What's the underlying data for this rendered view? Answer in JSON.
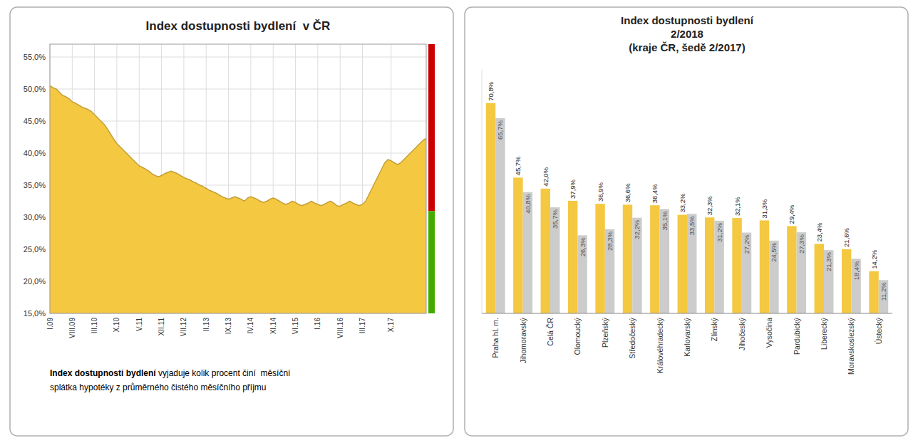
{
  "chart_data": [
    {
      "type": "area",
      "title": "Index dostupnosti bydlení  v ČR",
      "categories": [
        "I.09",
        null,
        null,
        null,
        null,
        null,
        null,
        "VIII.09",
        null,
        null,
        null,
        null,
        null,
        null,
        "III.10",
        null,
        null,
        null,
        null,
        null,
        null,
        "X.10",
        null,
        null,
        null,
        null,
        null,
        null,
        "V.11",
        null,
        null,
        null,
        null,
        null,
        null,
        "XII.11",
        null,
        null,
        null,
        null,
        null,
        null,
        "VII.12",
        null,
        null,
        null,
        null,
        null,
        null,
        "II.13",
        null,
        null,
        null,
        null,
        null,
        null,
        "IX.13",
        null,
        null,
        null,
        null,
        null,
        null,
        "IV.14",
        null,
        null,
        null,
        null,
        null,
        null,
        "XI.14",
        null,
        null,
        null,
        null,
        null,
        null,
        "VI.15",
        null,
        null,
        null,
        null,
        null,
        null,
        "I.16",
        null,
        null,
        null,
        null,
        null,
        null,
        "VIII.16",
        null,
        null,
        null,
        null,
        null,
        null,
        "III.17",
        null,
        null,
        null,
        null,
        null,
        null,
        null,
        null,
        "X.17",
        null,
        null,
        null,
        null,
        null,
        null,
        null,
        null,
        null,
        null,
        null
      ],
      "values": [
        50.5,
        50.2,
        50.0,
        49.5,
        49.0,
        48.8,
        48.5,
        48.0,
        47.8,
        47.5,
        47.2,
        47.0,
        46.8,
        46.5,
        46.0,
        45.5,
        45.0,
        44.5,
        43.8,
        43.0,
        42.2,
        41.5,
        41.0,
        40.5,
        40.0,
        39.5,
        39.0,
        38.5,
        38.0,
        37.8,
        37.5,
        37.2,
        36.8,
        36.5,
        36.3,
        36.5,
        36.8,
        37.0,
        37.2,
        37.0,
        36.8,
        36.5,
        36.2,
        36.0,
        35.8,
        35.5,
        35.3,
        35.0,
        34.8,
        34.5,
        34.2,
        34.0,
        33.8,
        33.5,
        33.2,
        33.0,
        32.8,
        33.0,
        33.2,
        33.0,
        32.8,
        32.5,
        33.0,
        33.2,
        33.0,
        32.8,
        32.5,
        32.3,
        32.5,
        32.8,
        33.0,
        32.8,
        32.5,
        32.2,
        32.0,
        32.2,
        32.5,
        32.3,
        32.0,
        31.8,
        32.0,
        32.2,
        32.5,
        32.2,
        32.0,
        31.8,
        32.0,
        32.3,
        32.5,
        32.2,
        31.8,
        31.7,
        32.0,
        32.2,
        32.5,
        32.2,
        32.0,
        31.8,
        32.0,
        32.5,
        33.5,
        34.5,
        35.5,
        36.5,
        37.5,
        38.5,
        39.0,
        38.8,
        38.5,
        38.2,
        38.5,
        39.0,
        39.5,
        40.0,
        40.5,
        41.0,
        41.5,
        42.0,
        42.3
      ],
      "color": "#F5C842",
      "ylim": [
        15,
        57
      ],
      "yticks": [
        {
          "value": 15,
          "label": "15,0%"
        },
        {
          "value": 20,
          "label": "20,0%"
        },
        {
          "value": 25,
          "label": "25,0%"
        },
        {
          "value": 30,
          "label": "30,0%"
        },
        {
          "value": 35,
          "label": "35,0%"
        },
        {
          "value": 40,
          "label": "40,0%"
        },
        {
          "value": 45,
          "label": "45,0%"
        },
        {
          "value": 50,
          "label": "50,0%"
        },
        {
          "value": 55,
          "label": "55,0%"
        }
      ],
      "grid": true,
      "annotations": [
        "Index dostupnosti bydlení",
        " vyjaduje kolik procent činí  měsíční",
        "splátka hypotéky z průměrného čistého měsíčního příjmu"
      ]
    },
    {
      "type": "bar",
      "title": "Index dostupnosti bydlení\n2/2018\n(kraje ČR, šedě 2/2017)",
      "categories": [
        "Praha hl. m.",
        "Jihomoravský",
        "Celá ČR",
        "Olomoucký",
        "Plzeňský",
        "Středočeský",
        "Královéhradecký",
        "Karlovarský",
        "Zlínský",
        "Jihočeský",
        "Vysočina",
        "Pardubický",
        "Liberecký",
        "Moravskoslezský",
        "Ústecký"
      ],
      "series": [
        {
          "color": "#F5C842",
          "values": [
            70.8,
            45.7,
            42.0,
            37.9,
            36.9,
            36.6,
            36.4,
            33.2,
            32.3,
            32.1,
            31.3,
            29.4,
            23.4,
            21.6,
            14.2
          ],
          "value_labels": [
            "70,8%",
            "45,7%",
            "42,0%",
            "37,9%",
            "36,9%",
            "36,6%",
            "36,4%",
            "33,2%",
            "32,3%",
            "32,1%",
            "31,3%",
            "29,4%",
            "23,4%",
            "21,6%",
            "14,2%"
          ]
        },
        {
          "color": "#CCCCCC",
          "values": [
            65.7,
            40.8,
            35.7,
            26.3,
            28.3,
            32.2,
            35.1,
            33.5,
            31.2,
            27.2,
            24.5,
            27.3,
            21.3,
            18.4,
            11.2
          ],
          "value_labels": [
            "65,7%",
            "40,8%",
            "35,7%",
            "26,3%",
            "28,3%",
            "32,2%",
            "35,1%",
            "33,5%",
            "31,2%",
            "27,2%",
            "24,5%",
            "27,3%",
            "21,3%",
            "18,4%",
            "11,2%"
          ]
        }
      ],
      "ylim": [
        0,
        82
      ],
      "data_labels": true,
      "tick_labels": "x"
    }
  ]
}
